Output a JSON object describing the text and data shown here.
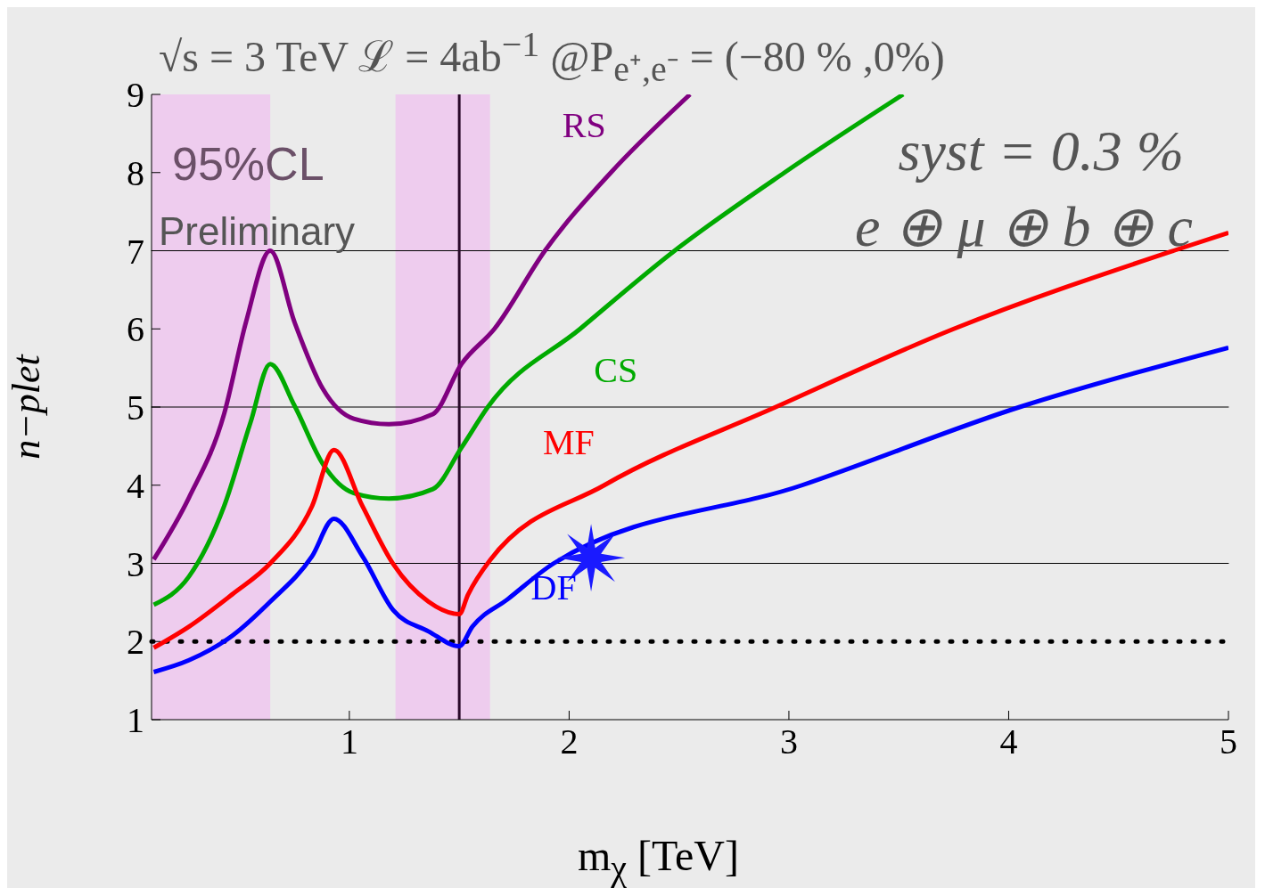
{
  "chart_data": {
    "type": "line",
    "title": "√s = 3 TeV ℒ = 4ab$^{−1}$ @P$_{e⁺,e⁻}$ = (−80 % ,0%)",
    "xlabel": "m$_{χ}$ [TeV]",
    "ylabel": "n−plet",
    "xlim": [
      0.1,
      5
    ],
    "xticks": [
      1,
      2,
      3,
      4,
      5
    ],
    "ylim": [
      1,
      9
    ],
    "yticks": [
      1,
      2,
      3,
      4,
      5,
      6,
      7,
      8,
      9
    ],
    "grid": false,
    "legend": false,
    "marker": "none",
    "line_style": "solid",
    "series": [
      {
        "name": "RS",
        "color": "#800080",
        "x": [
          0.11,
          0.27,
          0.43,
          0.53,
          0.64,
          0.75,
          0.88,
          1.02,
          1.18,
          1.38,
          1.51,
          1.66,
          1.89,
          2.19,
          2.55
        ],
        "values": [
          3.05,
          3.84,
          4.91,
          6.09,
          7.0,
          6.09,
          5.23,
          4.85,
          4.78,
          4.91,
          5.55,
          6.0,
          7.0,
          8.0,
          9.0
        ]
      },
      {
        "name": "CS",
        "color": "#00aa00",
        "x": [
          0.11,
          0.27,
          0.43,
          0.55,
          0.64,
          0.75,
          0.88,
          1.02,
          1.18,
          1.38,
          1.51,
          1.63,
          2.05,
          2.48,
          2.98,
          3.52
        ],
        "values": [
          2.47,
          2.83,
          3.73,
          4.8,
          5.55,
          5.02,
          4.27,
          3.9,
          3.83,
          3.95,
          4.48,
          5.0,
          6.0,
          7.0,
          8.0,
          9.0
        ]
      },
      {
        "name": "MF",
        "color": "#ff0000",
        "x": [
          0.11,
          0.27,
          0.47,
          0.64,
          0.83,
          0.93,
          1.06,
          1.2,
          1.36,
          1.5,
          1.54,
          1.64,
          2.16,
          2.94,
          3.75,
          4.75,
          5.0
        ],
        "values": [
          1.92,
          2.19,
          2.61,
          3.0,
          3.73,
          4.45,
          3.73,
          2.99,
          2.51,
          2.35,
          2.6,
          3.04,
          4.0,
          5.0,
          6.0,
          7.0,
          7.23
        ]
      },
      {
        "name": "DF",
        "color": "#0000ff",
        "x": [
          0.11,
          0.27,
          0.47,
          0.64,
          0.83,
          0.93,
          1.06,
          1.2,
          1.36,
          1.5,
          1.56,
          1.72,
          1.93,
          3.06,
          4.05,
          5.0
        ],
        "values": [
          1.61,
          1.76,
          2.08,
          2.51,
          3.09,
          3.57,
          3.09,
          2.4,
          2.13,
          1.94,
          2.19,
          2.54,
          3.0,
          4.0,
          5.0,
          5.76
        ]
      },
      {
        "type": "scatter",
        "color": "#1a1aff",
        "marker": "star",
        "x": [
          2.1
        ],
        "values": [
          3.07
        ]
      }
    ],
    "ref_lines": [
      {
        "axis": "y",
        "value": 2,
        "color": "#000000",
        "line_style": "dotted"
      },
      {
        "axis": "y",
        "value": 3,
        "color": "#000000",
        "line_style": "solid"
      },
      {
        "axis": "y",
        "value": 5,
        "color": "#000000",
        "line_style": "solid"
      },
      {
        "axis": "y",
        "value": 7,
        "color": "#000000",
        "line_style": "solid"
      },
      {
        "axis": "x",
        "value": 1.5,
        "color": "#2a0a2a",
        "line_style": "solid"
      }
    ],
    "bands": [
      {
        "axis": "x",
        "from": 0.1,
        "to": 0.64,
        "color": "#eeccee"
      },
      {
        "axis": "x",
        "from": 1.21,
        "to": 1.64,
        "color": "#eeccee"
      }
    ],
    "annotations": [
      "95%CL",
      "Preliminary",
      "syst = 0.3 %",
      "e ⊕ μ ⊕ b ⊕ c"
    ]
  }
}
